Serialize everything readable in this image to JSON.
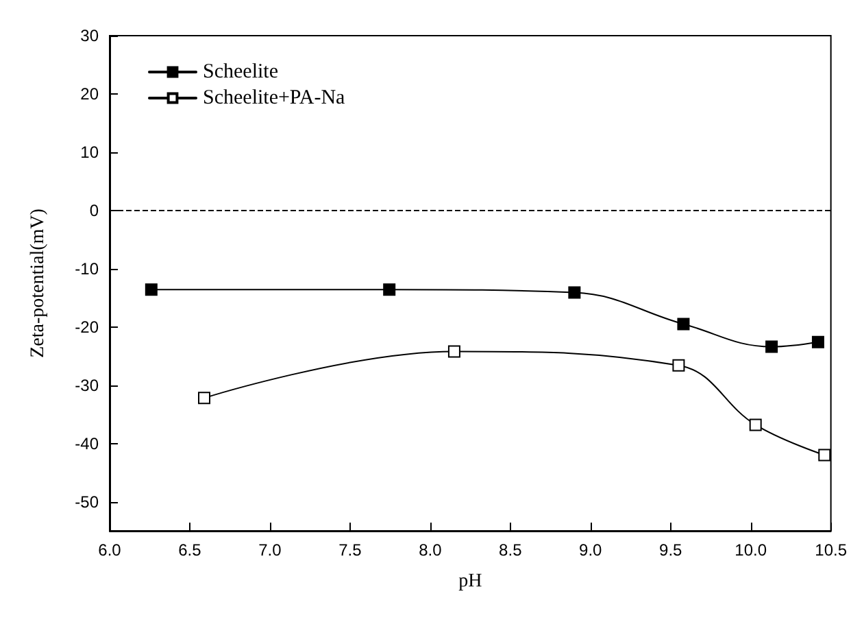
{
  "chart_data": {
    "type": "line",
    "xlabel": "pH",
    "ylabel": "Zeta-potential(mV)",
    "xlim": [
      6.0,
      10.5
    ],
    "xticks": [
      {
        "value": 6,
        "label": "6.0"
      },
      {
        "value": 6.5,
        "label": "6.5"
      },
      {
        "value": 7,
        "label": "7.0"
      },
      {
        "value": 7.5,
        "label": "7.5"
      },
      {
        "value": 8,
        "label": "8.0"
      },
      {
        "value": 8.5,
        "label": "8.5"
      },
      {
        "value": 9,
        "label": "9.0"
      },
      {
        "value": 9.5,
        "label": "9.5"
      },
      {
        "value": 10,
        "label": "10.0"
      },
      {
        "value": 10.5,
        "label": "10.5"
      }
    ],
    "ylim": [
      -55,
      30
    ],
    "yticks": [
      -50,
      -40,
      -30,
      -20,
      -10,
      0,
      10,
      20,
      30
    ],
    "series": [
      {
        "name": "Scheelite",
        "color": "#000000",
        "marker": "square",
        "x": [
          6.26,
          7.745,
          8.9,
          9.58,
          10.13,
          10.42
        ],
        "values": [
          -13.6,
          -13.6,
          -14.1,
          -19.5,
          -23.4,
          -22.6
        ]
      },
      {
        "name": "Scheelite+PA-Na",
        "color": "#000000",
        "marker": "square",
        "x": [
          6.59,
          8.15,
          9.55,
          10.03,
          10.46
        ],
        "values": [
          -32.2,
          -24.2,
          -26.6,
          -36.8,
          -42.0
        ]
      }
    ],
    "ref_lines": [
      {
        "axis": "y",
        "value": 0,
        "line_style": "dashed",
        "color": "#000000"
      }
    ],
    "legend": "top left",
    "grid": false,
    "line_style": "solid"
  }
}
